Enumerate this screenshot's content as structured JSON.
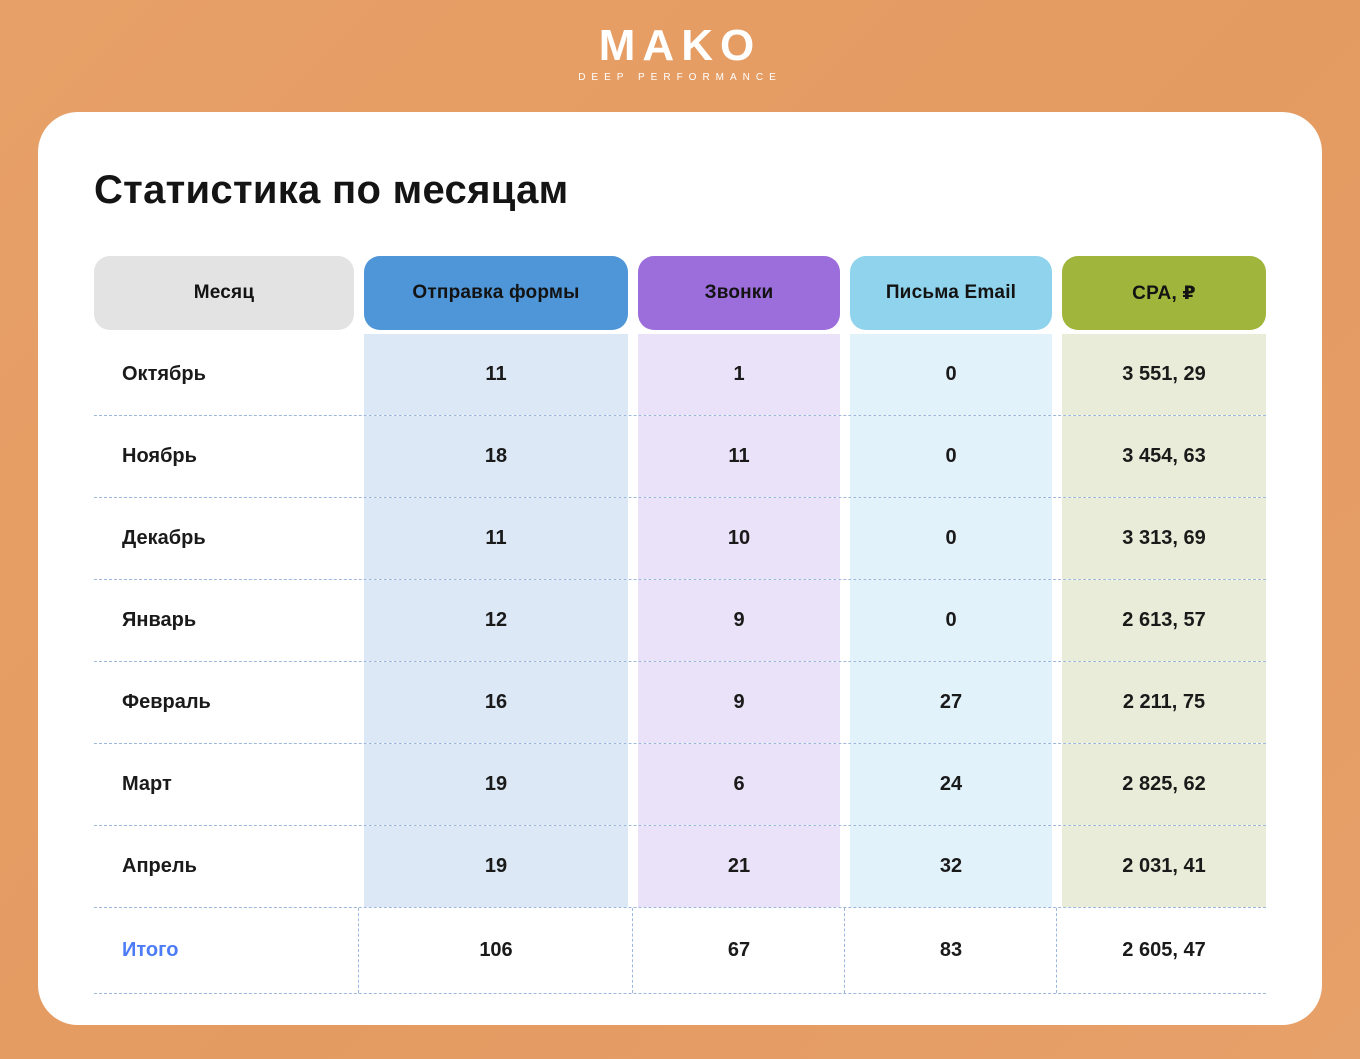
{
  "logo": {
    "brand": "MAKO",
    "tagline": "DEEP PERFORMANCE"
  },
  "page": {
    "title": "Статистика по месяцам"
  },
  "colors": {
    "background": "#e5a066",
    "card": "#ffffff",
    "dashed_line": "#9db8dc",
    "total_label": "#4d7cf6"
  },
  "chart_data": {
    "type": "table",
    "title": "Статистика по месяцам",
    "columns": [
      {
        "label": "Месяц",
        "header_bg": "#e3e3e3",
        "cell_bg": "transparent"
      },
      {
        "label": "Отправка формы",
        "header_bg": "#4e96d8",
        "cell_bg": "#dce8f6"
      },
      {
        "label": "Звонки",
        "header_bg": "#9c6edb",
        "cell_bg": "#eae2f8"
      },
      {
        "label": "Письма Email",
        "header_bg": "#8fd3ec",
        "cell_bg": "#e2f2fa"
      },
      {
        "label": "CPA, ₽",
        "header_bg": "#9fb53b",
        "cell_bg": "#e9ecd8"
      }
    ],
    "rows": [
      {
        "month": "Октябрь",
        "values": [
          "11",
          "1",
          "0",
          "3 551, 29"
        ]
      },
      {
        "month": "Ноябрь",
        "values": [
          "18",
          "11",
          "0",
          "3 454, 63"
        ]
      },
      {
        "month": "Декабрь",
        "values": [
          "11",
          "10",
          "0",
          "3 313, 69"
        ]
      },
      {
        "month": "Январь",
        "values": [
          "12",
          "9",
          "0",
          "2 613, 57"
        ]
      },
      {
        "month": "Февраль",
        "values": [
          "16",
          "9",
          "27",
          "2 211, 75"
        ]
      },
      {
        "month": "Март",
        "values": [
          "19",
          "6",
          "24",
          "2 825, 62"
        ]
      },
      {
        "month": "Апрель",
        "values": [
          "19",
          "21",
          "32",
          "2 031, 41"
        ]
      }
    ],
    "total": {
      "label": "Итого",
      "values": [
        "106",
        "67",
        "83",
        "2 605, 47"
      ],
      "label_color": "#4d7cf6"
    }
  }
}
